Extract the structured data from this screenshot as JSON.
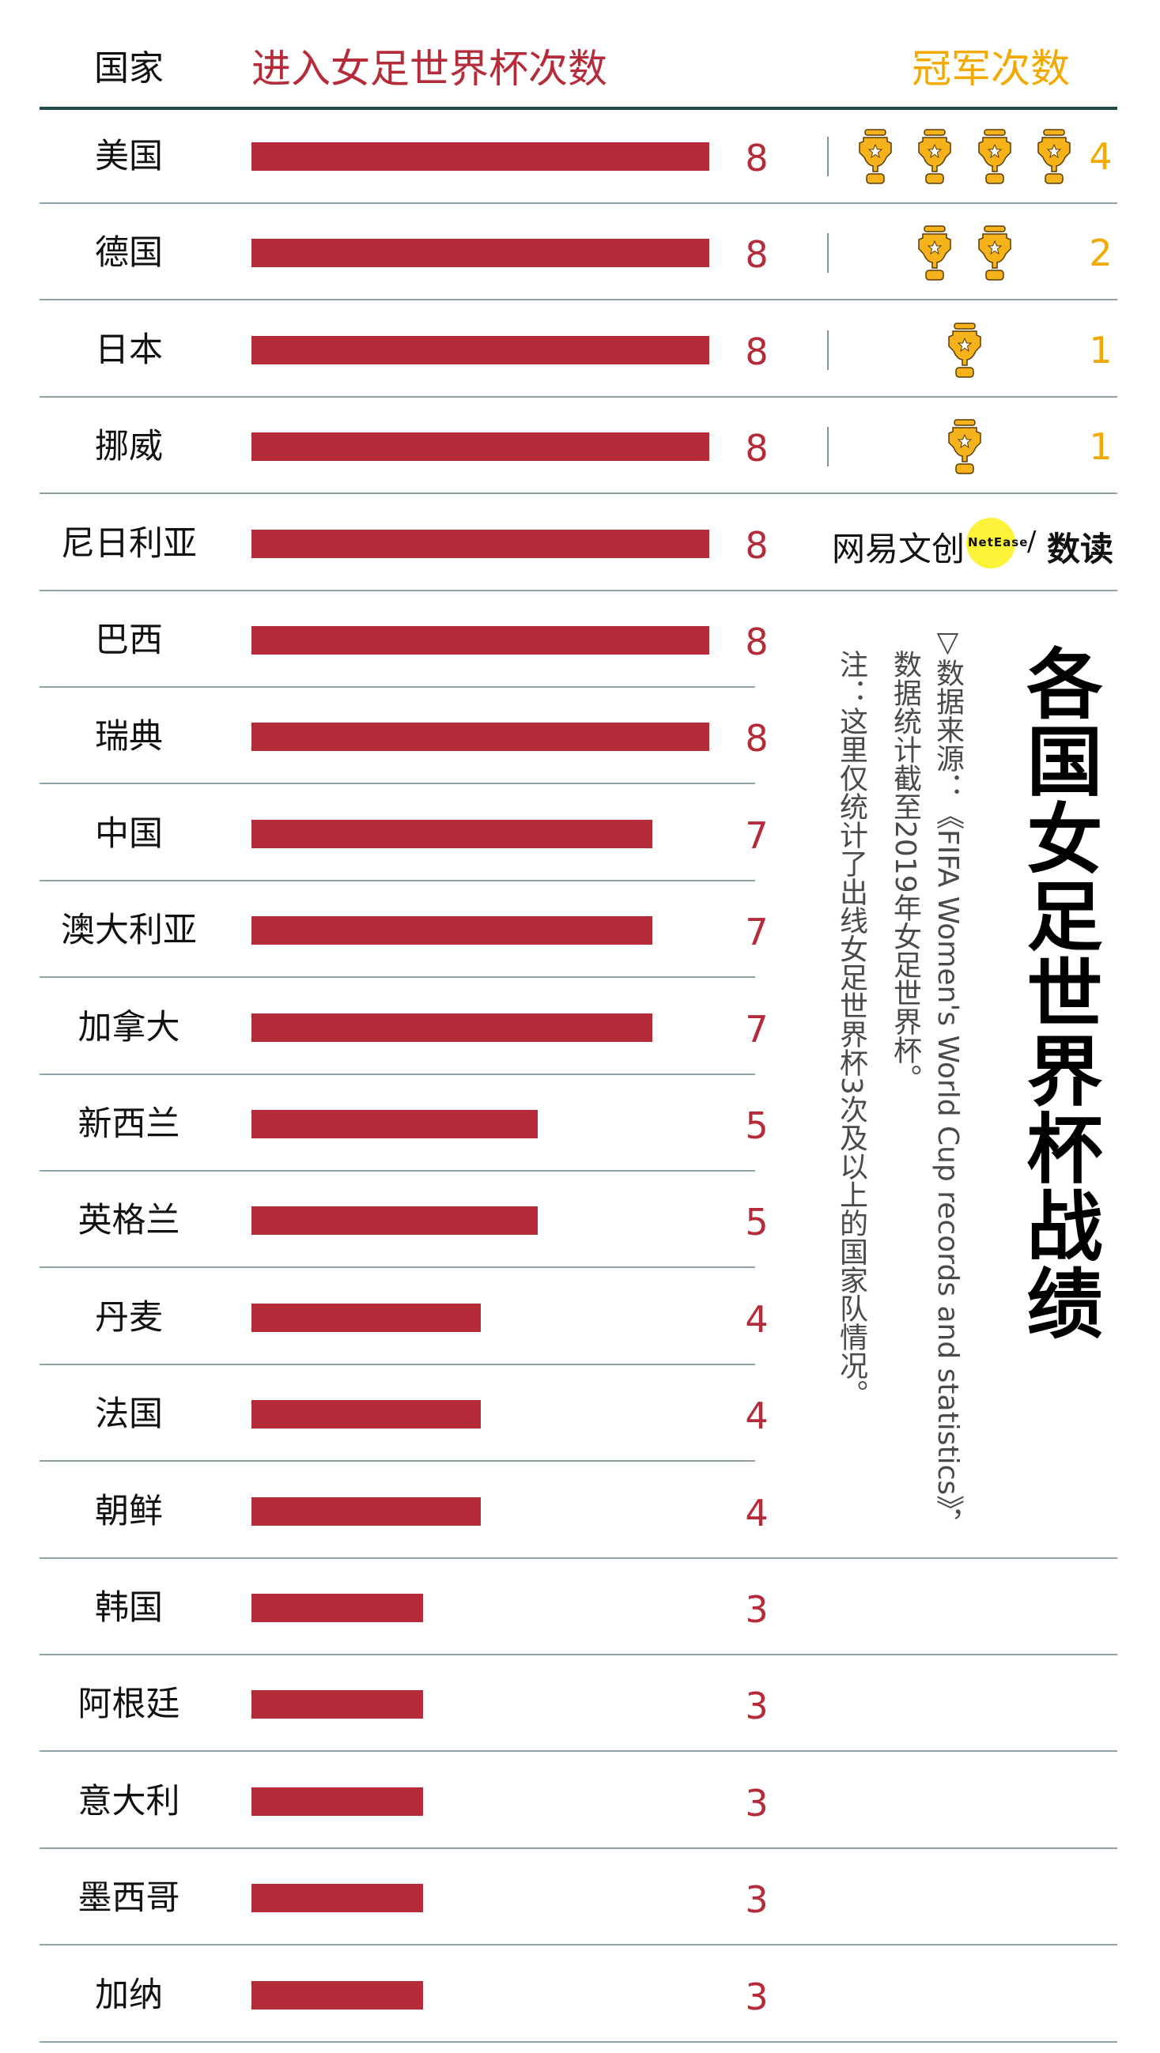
{
  "chart_data": {
    "type": "bar",
    "orientation": "horizontal",
    "title": "各国女足世界杯战绩",
    "column_headers": {
      "country": "国家",
      "appearances": "进入女足世界杯次数",
      "titles": "冠军次数"
    },
    "categories": [
      "美国",
      "德国",
      "日本",
      "挪威",
      "尼日利亚",
      "巴西",
      "瑞典",
      "中国",
      "澳大利亚",
      "加拿大",
      "新西兰",
      "英格兰",
      "丹麦",
      "法国",
      "朝鲜",
      "韩国",
      "阿根廷",
      "意大利",
      "墨西哥",
      "加纳"
    ],
    "series": [
      {
        "key": "appearances",
        "values": [
          8,
          8,
          8,
          8,
          8,
          8,
          8,
          7,
          7,
          7,
          5,
          5,
          4,
          4,
          4,
          3,
          3,
          3,
          3,
          3
        ]
      },
      {
        "key": "titles",
        "values": [
          4,
          2,
          1,
          1,
          null,
          null,
          null,
          null,
          null,
          null,
          null,
          null,
          null,
          null,
          null,
          null,
          null,
          null,
          null,
          null
        ]
      }
    ],
    "xlim": [
      0,
      8
    ],
    "grid": false,
    "colors": {
      "bar": "#b52b3a",
      "trophy": "#f2a900",
      "text": "#111111",
      "header_rule": "#1e4a4c",
      "row_rule": "#8fa3a6"
    },
    "icon": "trophy-icon"
  },
  "notes": {
    "source_line1": "▽数据来源：《FIFA Women's World Cup records and statistics》，",
    "source_line2": "数据统计截至2019年女足世界杯。",
    "note": "注：这里仅统计了出线女足世界杯3次及以上的国家队情况。"
  },
  "logo": {
    "left": "网易文创",
    "badge": "NetEase",
    "sep": "/",
    "right": "数读"
  }
}
